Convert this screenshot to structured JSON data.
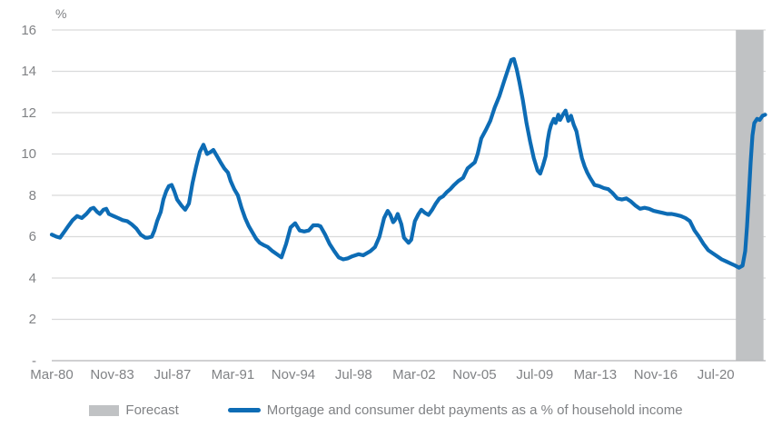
{
  "colors": {
    "series_blue": "#0d6cb5",
    "forecast_band_gray": "#c0c2c4",
    "gridline_gray": "#d9dadb",
    "axis_gray": "#b3b5b7",
    "text_gray": "#808285",
    "background": "#ffffff"
  },
  "legend": {
    "forecast_label": "Forecast",
    "series_label": "Mortgage and consumer debt payments as a % of household income"
  },
  "chart_data": {
    "type": "line",
    "unit_label": "%",
    "xlim": [
      1980.2,
      2023.55
    ],
    "ylim": [
      0,
      16
    ],
    "grid": "horizontal",
    "legend_position": "bottom",
    "forecast_band": {
      "start_year": 2021.74,
      "end_year": 2023.42
    },
    "y_ticks": [
      {
        "label": "16",
        "value": 16
      },
      {
        "label": "14",
        "value": 14
      },
      {
        "label": "12",
        "value": 12
      },
      {
        "label": "10",
        "value": 10
      },
      {
        "label": "8",
        "value": 8
      },
      {
        "label": "6",
        "value": 6
      },
      {
        "label": "4",
        "value": 4
      },
      {
        "label": "2",
        "value": 2
      },
      {
        "label": "-",
        "value": 0
      }
    ],
    "x_ticks": [
      {
        "label": "Mar-80",
        "year": 1980.2
      },
      {
        "label": "Nov-83",
        "year": 1983.87
      },
      {
        "label": "Jul-87",
        "year": 1987.53
      },
      {
        "label": "Mar-91",
        "year": 1991.2
      },
      {
        "label": "Nov-94",
        "year": 1994.87
      },
      {
        "label": "Jul-98",
        "year": 1998.53
      },
      {
        "label": "Mar-02",
        "year": 2002.2
      },
      {
        "label": "Nov-05",
        "year": 2005.87
      },
      {
        "label": "Jul-09",
        "year": 2009.53
      },
      {
        "label": "Mar-13",
        "year": 2013.2
      },
      {
        "label": "Nov-16",
        "year": 2016.87
      },
      {
        "label": "Jul-20",
        "year": 2020.53
      }
    ],
    "series": [
      {
        "name": "Mortgage and consumer debt payments as a % of household income",
        "points": [
          [
            1980.2,
            6.1
          ],
          [
            1980.48,
            6.0
          ],
          [
            1980.7,
            5.95
          ],
          [
            1980.97,
            6.25
          ],
          [
            1981.19,
            6.5
          ],
          [
            1981.47,
            6.8
          ],
          [
            1981.74,
            7.0
          ],
          [
            1982.02,
            6.9
          ],
          [
            1982.3,
            7.1
          ],
          [
            1982.57,
            7.35
          ],
          [
            1982.74,
            7.4
          ],
          [
            1982.96,
            7.2
          ],
          [
            1983.12,
            7.1
          ],
          [
            1983.34,
            7.3
          ],
          [
            1983.51,
            7.35
          ],
          [
            1983.67,
            7.1
          ],
          [
            1983.95,
            7.0
          ],
          [
            1984.23,
            6.9
          ],
          [
            1984.5,
            6.8
          ],
          [
            1984.78,
            6.75
          ],
          [
            1985.05,
            6.6
          ],
          [
            1985.33,
            6.4
          ],
          [
            1985.6,
            6.1
          ],
          [
            1985.88,
            5.95
          ],
          [
            1986.04,
            5.95
          ],
          [
            1986.27,
            6.0
          ],
          [
            1986.43,
            6.3
          ],
          [
            1986.6,
            6.75
          ],
          [
            1986.82,
            7.2
          ],
          [
            1986.98,
            7.8
          ],
          [
            1987.15,
            8.2
          ],
          [
            1987.31,
            8.45
          ],
          [
            1987.48,
            8.5
          ],
          [
            1987.64,
            8.2
          ],
          [
            1987.81,
            7.8
          ],
          [
            1988.08,
            7.5
          ],
          [
            1988.3,
            7.3
          ],
          [
            1988.53,
            7.6
          ],
          [
            1988.75,
            8.6
          ],
          [
            1988.97,
            9.4
          ],
          [
            1989.19,
            10.1
          ],
          [
            1989.41,
            10.45
          ],
          [
            1989.63,
            10.0
          ],
          [
            1989.85,
            10.1
          ],
          [
            1990.01,
            10.2
          ],
          [
            1990.23,
            9.9
          ],
          [
            1990.45,
            9.6
          ],
          [
            1990.68,
            9.3
          ],
          [
            1990.9,
            9.1
          ],
          [
            1991.06,
            8.7
          ],
          [
            1991.28,
            8.3
          ],
          [
            1991.5,
            8.0
          ],
          [
            1991.72,
            7.4
          ],
          [
            1991.94,
            6.9
          ],
          [
            1992.17,
            6.5
          ],
          [
            1992.39,
            6.2
          ],
          [
            1992.61,
            5.9
          ],
          [
            1992.83,
            5.7
          ],
          [
            1993.05,
            5.6
          ],
          [
            1993.32,
            5.5
          ],
          [
            1993.6,
            5.3
          ],
          [
            1993.87,
            5.15
          ],
          [
            1994.15,
            5.0
          ],
          [
            1994.43,
            5.65
          ],
          [
            1994.7,
            6.45
          ],
          [
            1994.98,
            6.65
          ],
          [
            1995.25,
            6.3
          ],
          [
            1995.53,
            6.25
          ],
          [
            1995.8,
            6.3
          ],
          [
            1996.08,
            6.55
          ],
          [
            1996.36,
            6.55
          ],
          [
            1996.52,
            6.5
          ],
          [
            1996.8,
            6.1
          ],
          [
            1997.07,
            5.65
          ],
          [
            1997.35,
            5.3
          ],
          [
            1997.62,
            5.0
          ],
          [
            1997.9,
            4.9
          ],
          [
            1998.17,
            4.95
          ],
          [
            1998.45,
            5.05
          ],
          [
            1998.84,
            5.15
          ],
          [
            1999.11,
            5.1
          ],
          [
            1999.33,
            5.2
          ],
          [
            1999.55,
            5.3
          ],
          [
            1999.83,
            5.5
          ],
          [
            2000.1,
            6.0
          ],
          [
            2000.38,
            6.9
          ],
          [
            2000.6,
            7.25
          ],
          [
            2000.76,
            7.05
          ],
          [
            2000.93,
            6.7
          ],
          [
            2001.04,
            6.8
          ],
          [
            2001.21,
            7.1
          ],
          [
            2001.43,
            6.6
          ],
          [
            2001.59,
            5.95
          ],
          [
            2001.87,
            5.7
          ],
          [
            2002.03,
            5.85
          ],
          [
            2002.25,
            6.75
          ],
          [
            2002.47,
            7.1
          ],
          [
            2002.64,
            7.3
          ],
          [
            2002.86,
            7.15
          ],
          [
            2003.08,
            7.05
          ],
          [
            2003.3,
            7.3
          ],
          [
            2003.52,
            7.6
          ],
          [
            2003.74,
            7.85
          ],
          [
            2003.96,
            7.95
          ],
          [
            2004.18,
            8.15
          ],
          [
            2004.4,
            8.3
          ],
          [
            2004.63,
            8.5
          ],
          [
            2004.9,
            8.7
          ],
          [
            2005.18,
            8.85
          ],
          [
            2005.45,
            9.3
          ],
          [
            2005.67,
            9.45
          ],
          [
            2005.89,
            9.6
          ],
          [
            2006.06,
            10.0
          ],
          [
            2006.28,
            10.75
          ],
          [
            2006.55,
            11.15
          ],
          [
            2006.83,
            11.6
          ],
          [
            2007.1,
            12.25
          ],
          [
            2007.38,
            12.8
          ],
          [
            2007.66,
            13.5
          ],
          [
            2007.93,
            14.15
          ],
          [
            2008.1,
            14.55
          ],
          [
            2008.26,
            14.6
          ],
          [
            2008.43,
            14.1
          ],
          [
            2008.59,
            13.5
          ],
          [
            2008.81,
            12.6
          ],
          [
            2009.03,
            11.5
          ],
          [
            2009.25,
            10.6
          ],
          [
            2009.47,
            9.8
          ],
          [
            2009.7,
            9.2
          ],
          [
            2009.86,
            9.05
          ],
          [
            2010.03,
            9.45
          ],
          [
            2010.19,
            9.9
          ],
          [
            2010.3,
            10.6
          ],
          [
            2010.41,
            11.1
          ],
          [
            2010.52,
            11.4
          ],
          [
            2010.69,
            11.7
          ],
          [
            2010.8,
            11.5
          ],
          [
            2010.96,
            11.9
          ],
          [
            2011.07,
            11.65
          ],
          [
            2011.24,
            11.9
          ],
          [
            2011.4,
            12.1
          ],
          [
            2011.57,
            11.6
          ],
          [
            2011.73,
            11.85
          ],
          [
            2011.9,
            11.4
          ],
          [
            2012.06,
            11.1
          ],
          [
            2012.23,
            10.4
          ],
          [
            2012.39,
            9.8
          ],
          [
            2012.56,
            9.4
          ],
          [
            2012.72,
            9.1
          ],
          [
            2012.89,
            8.85
          ],
          [
            2013.16,
            8.5
          ],
          [
            2013.44,
            8.45
          ],
          [
            2013.72,
            8.35
          ],
          [
            2013.99,
            8.3
          ],
          [
            2014.27,
            8.1
          ],
          [
            2014.54,
            7.85
          ],
          [
            2014.82,
            7.8
          ],
          [
            2015.09,
            7.85
          ],
          [
            2015.37,
            7.7
          ],
          [
            2015.65,
            7.5
          ],
          [
            2015.92,
            7.35
          ],
          [
            2016.2,
            7.4
          ],
          [
            2016.47,
            7.35
          ],
          [
            2016.75,
            7.25
          ],
          [
            2017.02,
            7.2
          ],
          [
            2017.3,
            7.15
          ],
          [
            2017.57,
            7.1
          ],
          [
            2017.85,
            7.1
          ],
          [
            2018.13,
            7.05
          ],
          [
            2018.4,
            7.0
          ],
          [
            2018.68,
            6.9
          ],
          [
            2018.95,
            6.75
          ],
          [
            2019.23,
            6.3
          ],
          [
            2019.5,
            6.0
          ],
          [
            2019.78,
            5.65
          ],
          [
            2020.06,
            5.35
          ],
          [
            2020.33,
            5.2
          ],
          [
            2020.61,
            5.05
          ],
          [
            2020.88,
            4.9
          ],
          [
            2021.16,
            4.8
          ],
          [
            2021.43,
            4.7
          ],
          [
            2021.71,
            4.6
          ],
          [
            2021.93,
            4.5
          ],
          [
            2022.15,
            4.6
          ],
          [
            2022.31,
            5.3
          ],
          [
            2022.42,
            6.5
          ],
          [
            2022.53,
            8.0
          ],
          [
            2022.64,
            9.6
          ],
          [
            2022.75,
            10.9
          ],
          [
            2022.86,
            11.5
          ],
          [
            2023.03,
            11.7
          ],
          [
            2023.19,
            11.65
          ],
          [
            2023.36,
            11.85
          ],
          [
            2023.52,
            11.9
          ]
        ]
      }
    ]
  }
}
